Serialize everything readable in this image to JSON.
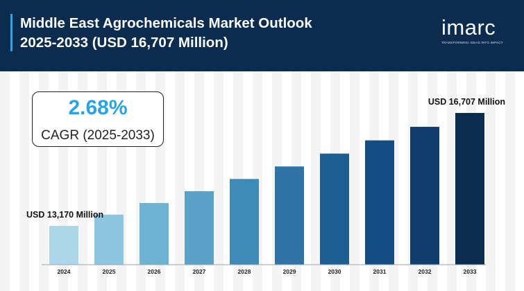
{
  "header": {
    "title_line1": "Middle East Agrochemicals Market Outlook",
    "title_line2": "2025-2033 (USD 16,707 Million)"
  },
  "logo": {
    "word": "imarc",
    "tagline": "TRANSFORMING IDEAS INTO IMPACT"
  },
  "cagr": {
    "value": "2.68%",
    "label": "CAGR (2025-2033)"
  },
  "chart_data": {
    "type": "bar",
    "categories": [
      "2024",
      "2025",
      "2026",
      "2027",
      "2028",
      "2029",
      "2030",
      "2031",
      "2032",
      "2033"
    ],
    "values": [
      13170,
      13523,
      13885,
      14257,
      14639,
      15031,
      15434,
      15848,
      16272,
      16707
    ],
    "annotations": [
      {
        "category": "2024",
        "text": "USD 13,170 Million"
      },
      {
        "category": "2033",
        "text": "USD 16,707 Million"
      }
    ],
    "colors": [
      "#acd8ea",
      "#8ec6df",
      "#6fb3d4",
      "#5aa2c7",
      "#3f8bb8",
      "#2f74a4",
      "#1f5e93",
      "#144c84",
      "#103e6e",
      "#0b2b4f"
    ],
    "grid": false,
    "legend": "none"
  }
}
